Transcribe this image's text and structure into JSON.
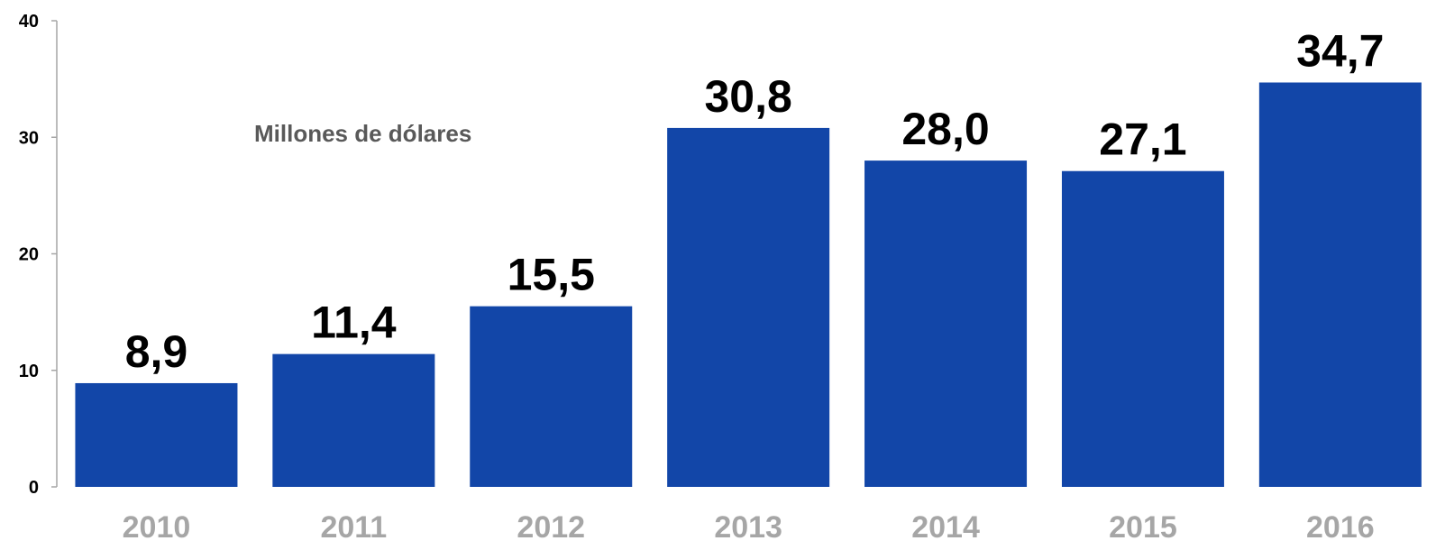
{
  "chart_data": {
    "type": "bar",
    "title": "",
    "unit_label": "Millones de dólares",
    "xlabel": "",
    "ylabel": "",
    "categories": [
      "2010",
      "2011",
      "2012",
      "2013",
      "2014",
      "2015",
      "2016"
    ],
    "values": [
      8.9,
      11.4,
      15.5,
      30.8,
      28.0,
      27.1,
      34.7
    ],
    "value_labels": [
      "8,9",
      "11,4",
      "15,5",
      "30,8",
      "28,0",
      "27,1",
      "34,7"
    ],
    "ylim": [
      0,
      40
    ],
    "yticks": [
      0,
      10,
      20,
      30,
      40
    ],
    "ytick_labels": [
      "0",
      "10",
      "20",
      "30",
      "40"
    ],
    "grid": false,
    "legend": "none",
    "bar_color": "#1246a8",
    "axis_color": "#a6a6a6",
    "xtick_color": "#a6a6a6",
    "unit_label_color": "#595959"
  }
}
